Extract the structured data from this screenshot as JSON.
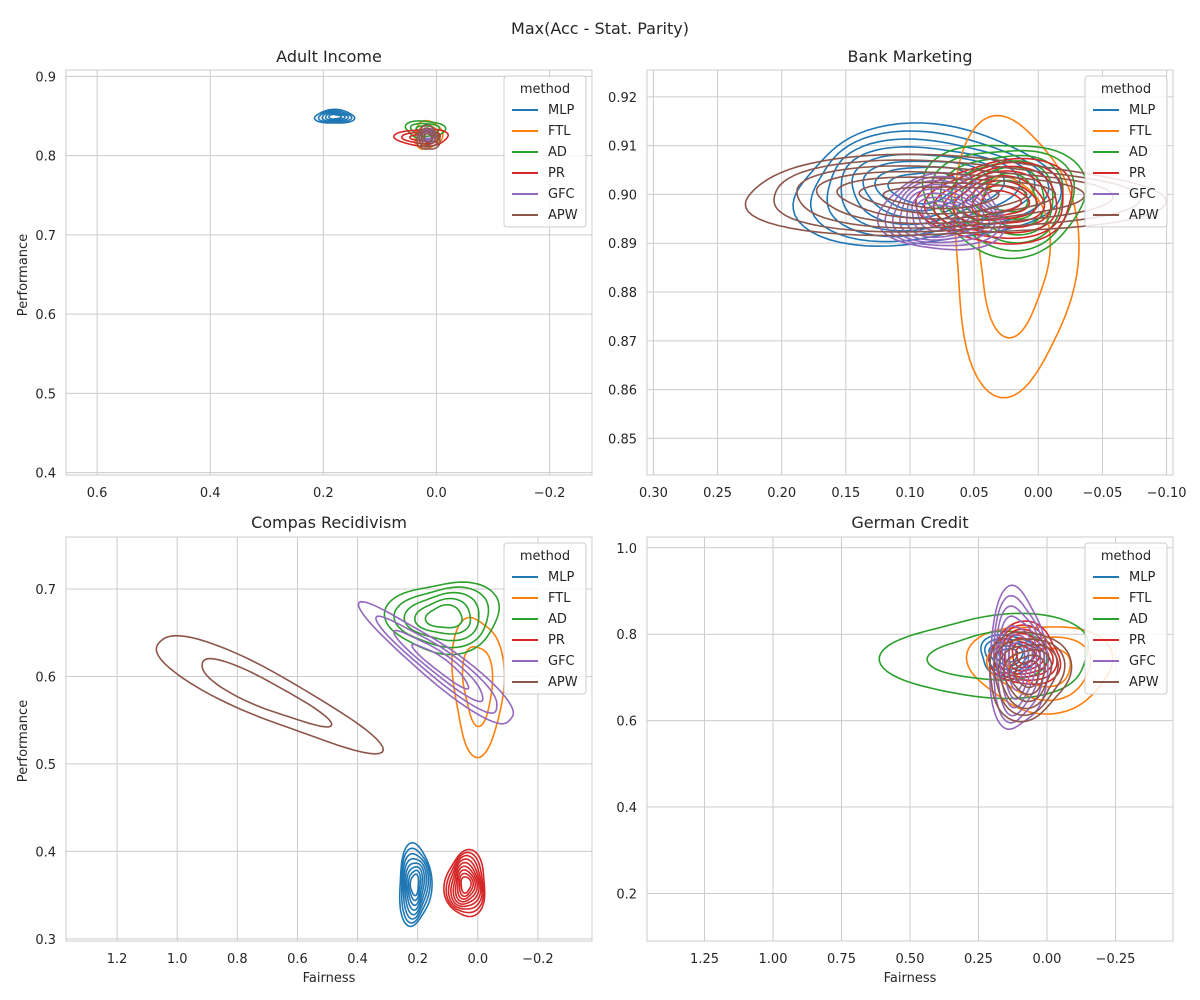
{
  "figure": {
    "suptitle": "Max(Acc - Stat. Parity)"
  },
  "chart_data": [
    {
      "type": "kde-contour",
      "title": "Adult Income",
      "xlabel": "",
      "ylabel": "Performance",
      "xlim": [
        0.655,
        -0.275
      ],
      "ylim": [
        0.397,
        0.908
      ],
      "xticks": [
        0.6,
        0.4,
        0.2,
        0.0,
        -0.2
      ],
      "xtick_labels": [
        "0.6",
        "0.4",
        "0.2",
        "0.0",
        "−0.2"
      ],
      "yticks": [
        0.4,
        0.5,
        0.6,
        0.7,
        0.8,
        0.9
      ],
      "ytick_labels": [
        "0.4",
        "0.5",
        "0.6",
        "0.7",
        "0.8",
        "0.9"
      ],
      "grid": true,
      "legend": {
        "title": "method",
        "placement": "top-right"
      },
      "series": [
        {
          "name": "MLP",
          "color": "#1f77b4",
          "levels": 5,
          "center": [
            0.18,
            0.849
          ],
          "sx": 0.033,
          "sy": 0.009,
          "rot": 0
        },
        {
          "name": "FTL",
          "color": "#ff7f0e",
          "levels": 3,
          "center": [
            0.015,
            0.826
          ],
          "sx": 0.025,
          "sy": 0.017,
          "rot": 0
        },
        {
          "name": "AD",
          "color": "#2ca02c",
          "levels": 3,
          "center": [
            0.02,
            0.833
          ],
          "sx": 0.035,
          "sy": 0.011,
          "rot": 0
        },
        {
          "name": "PR",
          "color": "#d62728",
          "levels": 3,
          "center": [
            0.025,
            0.823
          ],
          "sx": 0.045,
          "sy": 0.011,
          "rot": 0
        },
        {
          "name": "GFC",
          "color": "#9467bd",
          "levels": 3,
          "center": [
            0.015,
            0.825
          ],
          "sx": 0.015,
          "sy": 0.008,
          "rot": 0
        },
        {
          "name": "APW",
          "color": "#8c564b",
          "levels": 4,
          "center": [
            0.015,
            0.822
          ],
          "sx": 0.02,
          "sy": 0.015,
          "rot": 0
        }
      ]
    },
    {
      "type": "kde-contour",
      "title": "Bank Marketing",
      "xlabel": "",
      "ylabel": "",
      "xlim": [
        0.305,
        -0.105
      ],
      "ylim": [
        0.8425,
        0.9255
      ],
      "xticks": [
        0.3,
        0.25,
        0.2,
        0.15,
        0.1,
        0.05,
        0.0,
        -0.05,
        -0.1
      ],
      "xtick_labels": [
        "0.30",
        "0.25",
        "0.20",
        "0.15",
        "0.10",
        "0.05",
        "0.00",
        "−0.05",
        "−0.10"
      ],
      "yticks": [
        0.85,
        0.86,
        0.87,
        0.88,
        0.89,
        0.9,
        0.91,
        0.92
      ],
      "ytick_labels": [
        "0.85",
        "0.86",
        "0.87",
        "0.88",
        "0.89",
        "0.90",
        "0.91",
        "0.92"
      ],
      "grid": true,
      "legend": {
        "title": "method",
        "placement": "top-right"
      },
      "series": [
        {
          "name": "MLP",
          "color": "#1f77b4",
          "levels": 8,
          "center": [
            0.09,
            0.9015
          ],
          "sx": 0.1,
          "sy": 0.0125,
          "rot": 0
        },
        {
          "name": "FTL",
          "color": "#ff7f0e",
          "levels": 2,
          "center": [
            0.02,
            0.888
          ],
          "sx": 0.05,
          "sy": 0.027,
          "rot": 0
        },
        {
          "name": "AD",
          "color": "#2ca02c",
          "levels": 7,
          "center": [
            0.025,
            0.8995
          ],
          "sx": 0.06,
          "sy": 0.012,
          "rot": 0
        },
        {
          "name": "PR",
          "color": "#d62728",
          "levels": 8,
          "center": [
            0.03,
            0.8985
          ],
          "sx": 0.06,
          "sy": 0.0085,
          "rot": 0
        },
        {
          "name": "GFC",
          "color": "#9467bd",
          "levels": 9,
          "center": [
            0.075,
            0.896
          ],
          "sx": 0.05,
          "sy": 0.0075,
          "rot": 0
        },
        {
          "name": "APW",
          "color": "#8c564b",
          "levels": 7,
          "center": [
            0.075,
            0.8995
          ],
          "sx": 0.155,
          "sy": 0.0085,
          "rot": 0
        }
      ]
    },
    {
      "type": "kde-contour",
      "title": "Compas Recidivism",
      "xlabel": "Fairness",
      "ylabel": "Performance",
      "xlim": [
        1.37,
        -0.38
      ],
      "ylim": [
        0.2975,
        0.7595
      ],
      "xticks": [
        1.2,
        1.0,
        0.8,
        0.6,
        0.4,
        0.2,
        0.0,
        -0.2
      ],
      "xtick_labels": [
        "1.2",
        "1.0",
        "0.8",
        "0.6",
        "0.4",
        "0.2",
        "0.0",
        "−0.2"
      ],
      "yticks": [
        0.3,
        0.4,
        0.5,
        0.6,
        0.7
      ],
      "ytick_labels": [
        "0.3",
        "0.4",
        "0.5",
        "0.6",
        "0.7"
      ],
      "grid": true,
      "legend": {
        "title": "method",
        "placement": "top-right"
      },
      "series": [
        {
          "name": "MLP",
          "color": "#1f77b4",
          "levels": 8,
          "center": [
            0.21,
            0.362
          ],
          "sx": 0.055,
          "sy": 0.045,
          "rot": 0
        },
        {
          "name": "FTL",
          "color": "#ff7f0e",
          "levels": 2,
          "center": [
            0.0,
            0.592
          ],
          "sx": 0.085,
          "sy": 0.078,
          "rot": 0
        },
        {
          "name": "AD",
          "color": "#2ca02c",
          "levels": 5,
          "center": [
            0.11,
            0.668
          ],
          "sx": 0.18,
          "sy": 0.042,
          "rot": 0
        },
        {
          "name": "PR",
          "color": "#d62728",
          "levels": 9,
          "center": [
            0.04,
            0.362
          ],
          "sx": 0.07,
          "sy": 0.036,
          "rot": 0
        },
        {
          "name": "GFC",
          "color": "#9467bd",
          "levels": 4,
          "center": [
            0.12,
            0.612
          ],
          "sx": 0.06,
          "sy": 0.11,
          "rot": -0.9
        },
        {
          "name": "APW",
          "color": "#8c564b",
          "levels": 2,
          "center": [
            0.72,
            0.582
          ],
          "sx": 0.4,
          "sy": 0.028,
          "rot": 0.46
        }
      ]
    },
    {
      "type": "kde-contour",
      "title": "German Credit",
      "xlabel": "Fairness",
      "ylabel": "",
      "xlim": [
        1.46,
        -0.46
      ],
      "ylim": [
        0.09,
        1.025
      ],
      "xticks": [
        1.25,
        1.0,
        0.75,
        0.5,
        0.25,
        0.0,
        -0.25
      ],
      "xtick_labels": [
        "1.25",
        "1.00",
        "0.75",
        "0.50",
        "0.25",
        "0.00",
        "−0.25"
      ],
      "yticks": [
        0.2,
        0.4,
        0.6,
        0.8,
        1.0
      ],
      "ytick_labels": [
        "0.2",
        "0.4",
        "0.6",
        "0.8",
        "1.0"
      ],
      "grid": true,
      "legend": {
        "title": "method",
        "placement": "top-right"
      },
      "series": [
        {
          "name": "MLP",
          "color": "#1f77b4",
          "levels": 5,
          "center": [
            0.14,
            0.752
          ],
          "sx": 0.11,
          "sy": 0.045,
          "rot": 0
        },
        {
          "name": "FTL",
          "color": "#ff7f0e",
          "levels": 3,
          "center": [
            0.02,
            0.725
          ],
          "sx": 0.25,
          "sy": 0.105,
          "rot": 0
        },
        {
          "name": "AD",
          "color": "#2ca02c",
          "levels": 2,
          "center": [
            0.2,
            0.748
          ],
          "sx": 0.38,
          "sy": 0.095,
          "rot": 0
        },
        {
          "name": "PR",
          "color": "#d62728",
          "levels": 7,
          "center": [
            0.08,
            0.752
          ],
          "sx": 0.13,
          "sy": 0.07,
          "rot": 0
        },
        {
          "name": "GFC",
          "color": "#9467bd",
          "levels": 7,
          "center": [
            0.11,
            0.74
          ],
          "sx": 0.1,
          "sy": 0.17,
          "rot": 0
        },
        {
          "name": "APW",
          "color": "#8c564b",
          "levels": 6,
          "center": [
            0.07,
            0.708
          ],
          "sx": 0.15,
          "sy": 0.1,
          "rot": 0
        }
      ]
    }
  ]
}
